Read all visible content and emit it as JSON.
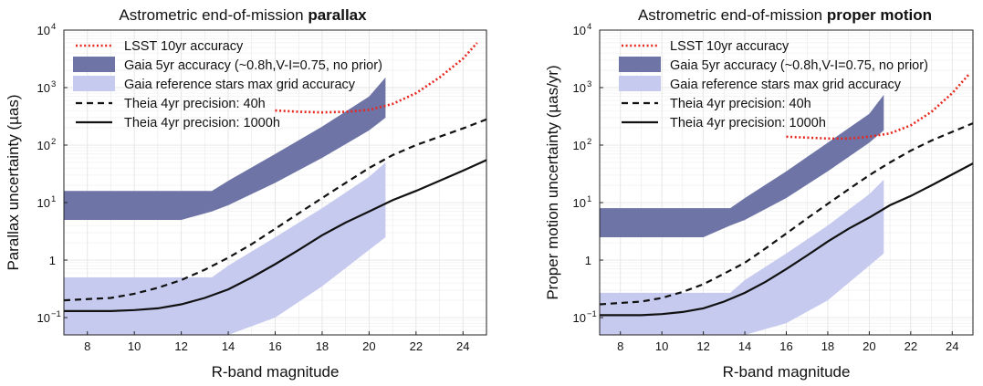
{
  "figure": {
    "colors": {
      "lsst": "#e8281e",
      "gaia_5yr": "#6e74a6",
      "gaia_ref": "#c6caef",
      "theia": "#111111",
      "grid": "#e4e4e4"
    }
  },
  "chart_data": [
    {
      "type": "line",
      "title_prefix": "Astrometric end-of-mission ",
      "title_bold": "parallax",
      "xlabel": "R-band magnitude",
      "ylabel": "Parallax uncertainty (µas)",
      "xlim": [
        7,
        25
      ],
      "ylim": [
        0.05,
        10000
      ],
      "yscale": "log",
      "xticks": [
        8,
        10,
        12,
        14,
        16,
        18,
        20,
        22,
        24
      ],
      "ytick_labels": [
        {
          "value": 10000,
          "base": "10",
          "exp": "4"
        },
        {
          "value": 1000,
          "base": "10",
          "exp": "3"
        },
        {
          "value": 100,
          "base": "10",
          "exp": "2"
        },
        {
          "value": 10,
          "base": "10",
          "exp": "1"
        },
        {
          "value": 1,
          "base": "1",
          "exp": ""
        },
        {
          "value": 0.1,
          "base": "10",
          "exp": "−1"
        }
      ],
      "grid": true,
      "legend_position": "top-left",
      "series": [
        {
          "name": "LSST 10yr accuracy",
          "kind": "dotted-line",
          "color": "#e8281e",
          "x": [
            16,
            17,
            18,
            19,
            20,
            21,
            22,
            23,
            24,
            24.6
          ],
          "y": [
            400,
            380,
            370,
            380,
            410,
            520,
            800,
            1500,
            3200,
            6000
          ]
        },
        {
          "name": "Gaia 5yr accuracy (~0.8h,V-I=0.75, no prior)",
          "kind": "band",
          "color": "#6e74a6",
          "x": [
            7,
            12,
            13.3,
            14,
            16,
            18,
            20,
            20.7
          ],
          "lower": [
            5,
            5,
            7,
            9,
            22,
            60,
            180,
            300
          ],
          "upper": [
            16,
            16,
            16,
            24,
            70,
            210,
            700,
            1500
          ]
        },
        {
          "name": "Gaia reference stars max grid accuracy",
          "kind": "band",
          "color": "#c6caef",
          "x": [
            7,
            13.3,
            14,
            16,
            18,
            20,
            20.7
          ],
          "lower": [
            0.05,
            0.05,
            0.05,
            0.1,
            0.35,
            1.5,
            2.5
          ],
          "upper": [
            0.5,
            0.5,
            0.8,
            2.5,
            8,
            28,
            50
          ]
        },
        {
          "name": "Theia 4yr precision: 40h",
          "kind": "dashed-line",
          "color": "#111111",
          "x": [
            7,
            9,
            10,
            11,
            12,
            13,
            14,
            15,
            16,
            17,
            18,
            19,
            20,
            21,
            22,
            23,
            24,
            25
          ],
          "y": [
            0.2,
            0.22,
            0.26,
            0.33,
            0.45,
            0.68,
            1.1,
            1.9,
            3.5,
            6.5,
            12,
            22,
            40,
            67,
            100,
            140,
            195,
            280
          ]
        },
        {
          "name": "Theia 4yr precision: 1000h",
          "kind": "solid-line",
          "color": "#111111",
          "x": [
            7,
            9,
            10,
            11,
            12,
            13,
            14,
            15,
            16,
            17,
            18,
            19,
            20,
            21,
            22,
            23,
            24,
            25
          ],
          "y": [
            0.13,
            0.13,
            0.135,
            0.145,
            0.17,
            0.22,
            0.31,
            0.5,
            0.85,
            1.5,
            2.7,
            4.5,
            7,
            11,
            16,
            24,
            36,
            55
          ]
        }
      ]
    },
    {
      "type": "line",
      "title_prefix": "Astrometric end-of-mission ",
      "title_bold": "proper motion",
      "xlabel": "R-band magnitude",
      "ylabel": "Proper motion uncertainty (µas/yr)",
      "xlim": [
        7,
        25
      ],
      "ylim": [
        0.05,
        10000
      ],
      "yscale": "log",
      "xticks": [
        8,
        10,
        12,
        14,
        16,
        18,
        20,
        22,
        24
      ],
      "ytick_labels": [
        {
          "value": 10000,
          "base": "10",
          "exp": "4"
        },
        {
          "value": 1000,
          "base": "10",
          "exp": "3"
        },
        {
          "value": 100,
          "base": "10",
          "exp": "2"
        },
        {
          "value": 10,
          "base": "10",
          "exp": "1"
        },
        {
          "value": 1,
          "base": "1",
          "exp": ""
        },
        {
          "value": 0.1,
          "base": "10",
          "exp": "−1"
        }
      ],
      "grid": true,
      "legend_position": "top-left",
      "series": [
        {
          "name": "LSST 10yr accuracy",
          "kind": "dotted-line",
          "color": "#e8281e",
          "x": [
            16,
            17,
            18,
            19,
            20,
            21,
            22,
            23,
            24,
            24.8
          ],
          "y": [
            140,
            135,
            130,
            130,
            140,
            160,
            220,
            380,
            800,
            1700
          ]
        },
        {
          "name": "Gaia 5yr accuracy (~0.8h,V-I=0.75, no prior)",
          "kind": "band",
          "color": "#6e74a6",
          "x": [
            7,
            12,
            13.3,
            14,
            16,
            18,
            20,
            20.7
          ],
          "lower": [
            2.5,
            2.5,
            4,
            5,
            12,
            35,
            110,
            180
          ],
          "upper": [
            8,
            8,
            8,
            12,
            35,
            110,
            350,
            750
          ]
        },
        {
          "name": "Gaia reference stars max grid accuracy",
          "kind": "band",
          "color": "#c6caef",
          "x": [
            7,
            13.3,
            14,
            16,
            18,
            20,
            20.7
          ],
          "lower": [
            0.05,
            0.05,
            0.05,
            0.08,
            0.2,
            0.8,
            1.3
          ],
          "upper": [
            0.27,
            0.27,
            0.45,
            1.3,
            4,
            14,
            25
          ]
        },
        {
          "name": "Theia 4yr precision: 40h",
          "kind": "dashed-line",
          "color": "#111111",
          "x": [
            7,
            9,
            10,
            11,
            12,
            13,
            14,
            15,
            16,
            17,
            18,
            19,
            20,
            21,
            22,
            23,
            24,
            25
          ],
          "y": [
            0.17,
            0.19,
            0.22,
            0.28,
            0.38,
            0.58,
            0.9,
            1.6,
            2.9,
            5.3,
            9.5,
            17,
            30,
            50,
            80,
            120,
            170,
            240
          ]
        },
        {
          "name": "Theia 4yr precision: 1000h",
          "kind": "solid-line",
          "color": "#111111",
          "x": [
            7,
            9,
            10,
            11,
            12,
            13,
            14,
            15,
            16,
            17,
            18,
            19,
            20,
            21,
            22,
            23,
            24,
            25
          ],
          "y": [
            0.11,
            0.11,
            0.115,
            0.125,
            0.145,
            0.19,
            0.27,
            0.42,
            0.7,
            1.2,
            2.1,
            3.5,
            5.5,
            9,
            13,
            20,
            31,
            48
          ]
        }
      ]
    }
  ]
}
